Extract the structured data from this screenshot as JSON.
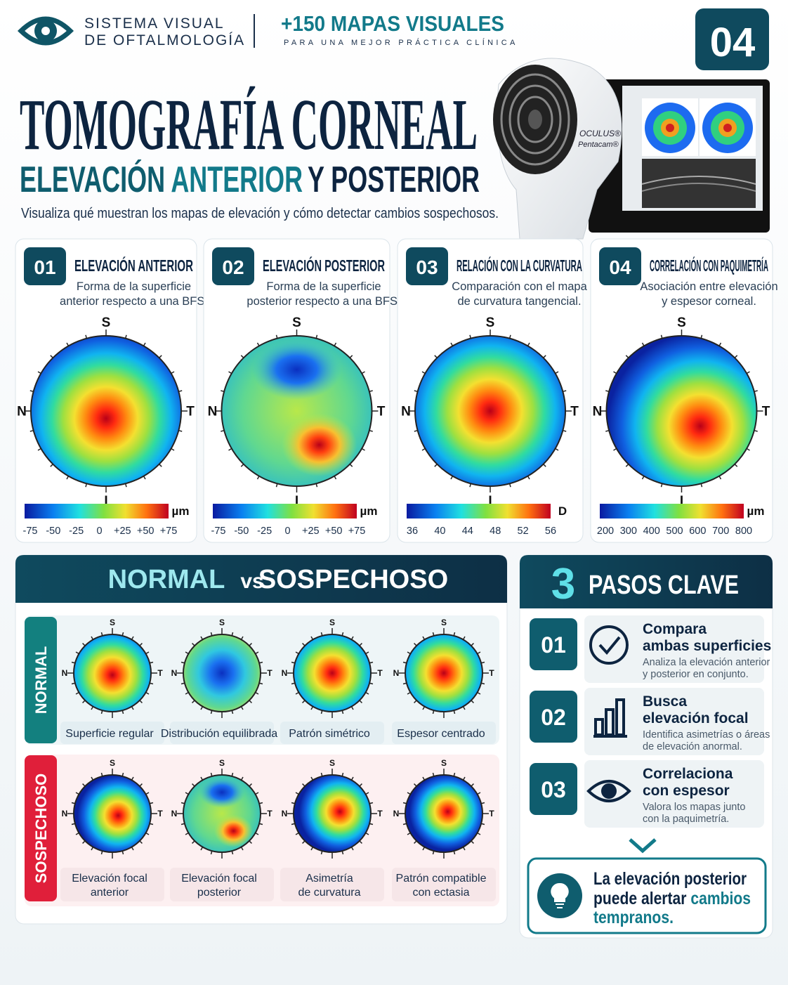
{
  "header": {
    "brand": [
      "SISTEMA VISUAL",
      "DE OFTALMOLOGÍA"
    ],
    "promo_title": "+150 MAPAS VISUALES",
    "promo_subtitle": "PARA UNA MEJOR PRÁCTICA CLÍNICA",
    "number": "04"
  },
  "title": "TOMOGRAFÍA CORNEAL",
  "subtitle": [
    "ELEVACIÓN",
    "ANTERIOR",
    "Y POSTERIOR"
  ],
  "description": "Visualiza qué muestran los mapas de elevación y cómo detectar cambios sospechosos.",
  "device": {
    "brand": "OCULUS®",
    "model": "Pentacam®"
  },
  "orientation": {
    "superior": "S",
    "nasal": "N",
    "temporal": "T",
    "inferior": "I"
  },
  "cards": [
    {
      "number": "01",
      "title": "ELEVACIÓN ANTERIOR",
      "description": [
        "Forma de la superficie",
        "anterior respecto a una BFS."
      ],
      "unit": "µm",
      "scale": [
        "-75",
        "-50",
        "-25",
        "0",
        "+25",
        "+50",
        "+75"
      ]
    },
    {
      "number": "02",
      "title": "ELEVACIÓN POSTERIOR",
      "description": [
        "Forma de la superficie",
        "posterior respecto a una BFS."
      ],
      "unit": "µm",
      "scale": [
        "-75",
        "-50",
        "-25",
        "0",
        "+25",
        "+50",
        "+75"
      ]
    },
    {
      "number": "03",
      "title": "RELACIÓN CON LA CURVATURA",
      "description": [
        "Comparación con el mapa",
        "de curvatura tangencial."
      ],
      "unit": "D",
      "scale": [
        "36",
        "40",
        "44",
        "48",
        "52",
        "56"
      ]
    },
    {
      "number": "04",
      "title": "CORRELACIÓN CON PAQUIMETRÍA",
      "description": [
        "Asociación entre elevación",
        "y espesor corneal."
      ],
      "unit": "µm",
      "scale": [
        "200",
        "300",
        "400",
        "500",
        "600",
        "700",
        "800"
      ]
    }
  ],
  "comparison": {
    "title": [
      "NORMAL",
      "vs",
      "SOSPECHOSO"
    ],
    "rows": [
      {
        "label": "NORMAL",
        "items": [
          [
            "Superficie regular"
          ],
          [
            "Distribución equilibrada"
          ],
          [
            "Patrón simétrico"
          ],
          [
            "Espesor centrado"
          ]
        ]
      },
      {
        "label": "SOSPECHOSO",
        "items": [
          [
            "Elevación focal",
            "anterior"
          ],
          [
            "Elevación focal",
            "posterior"
          ],
          [
            "Asimetría",
            "de curvatura"
          ],
          [
            "Patrón compatible",
            "con ectasia"
          ]
        ]
      }
    ]
  },
  "steps": {
    "number": "3",
    "title": "PASOS CLAVE",
    "items": [
      {
        "number": "01",
        "title": [
          "Compara",
          "ambas superficies"
        ],
        "description": [
          "Analiza la elevación anterior",
          "y posterior en conjunto."
        ]
      },
      {
        "number": "02",
        "title": [
          "Busca",
          "elevación focal"
        ],
        "description": [
          "Identifica asimetrías o áreas",
          "de elevación anormal."
        ]
      },
      {
        "number": "03",
        "title": [
          "Correlaciona",
          "con espesor"
        ],
        "description": [
          "Valora los mapas junto",
          "con la paquimetría."
        ]
      }
    ],
    "callout": [
      "La elevación posterior",
      "puede alertar",
      "cambios",
      "tempranos."
    ]
  }
}
